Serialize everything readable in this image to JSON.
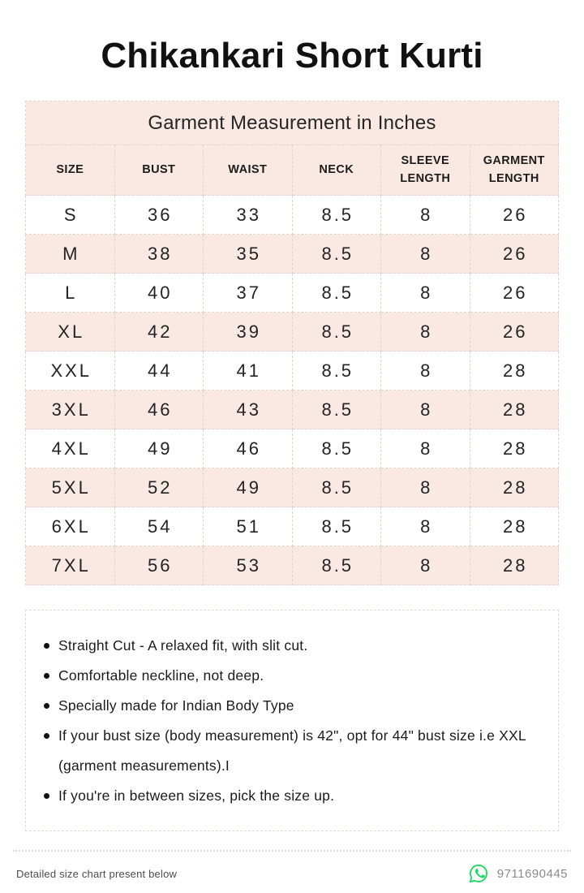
{
  "page": {
    "title": "Chikankari Short Kurti"
  },
  "table": {
    "caption": "Garment Measurement in Inches",
    "columns": [
      "SIZE",
      "BUST",
      "WAIST",
      "NECK",
      "SLEEVE LENGTH",
      "GARMENT LENGTH"
    ],
    "rows": [
      [
        "S",
        "36",
        "33",
        "8.5",
        "8",
        "26"
      ],
      [
        "M",
        "38",
        "35",
        "8.5",
        "8",
        "26"
      ],
      [
        "L",
        "40",
        "37",
        "8.5",
        "8",
        "26"
      ],
      [
        "XL",
        "42",
        "39",
        "8.5",
        "8",
        "26"
      ],
      [
        "XXL",
        "44",
        "41",
        "8.5",
        "8",
        "28"
      ],
      [
        "3XL",
        "46",
        "43",
        "8.5",
        "8",
        "28"
      ],
      [
        "4XL",
        "49",
        "46",
        "8.5",
        "8",
        "28"
      ],
      [
        "5XL",
        "52",
        "49",
        "8.5",
        "8",
        "28"
      ],
      [
        "6XL",
        "54",
        "51",
        "8.5",
        "8",
        "28"
      ],
      [
        "7XL",
        "56",
        "53",
        "8.5",
        "8",
        "28"
      ]
    ]
  },
  "notes": {
    "items": [
      "Straight Cut - A relaxed fit, with slit cut.",
      "Comfortable neckline,  not deep.",
      "Specially made for Indian Body Type",
      "If your bust size (body measurement) is 42\", opt for 44\" bust size i.e XXL (garment measurements).I",
      "If you're in between sizes, pick the size up."
    ]
  },
  "footer": {
    "note": "Detailed size chart present below",
    "phone": "9711690445",
    "icon": "whatsapp-icon"
  },
  "colors": {
    "table_stripe_pink": "#f9e9e2",
    "whatsapp_green": "#25d366",
    "text_dark": "#1c1c1c"
  }
}
